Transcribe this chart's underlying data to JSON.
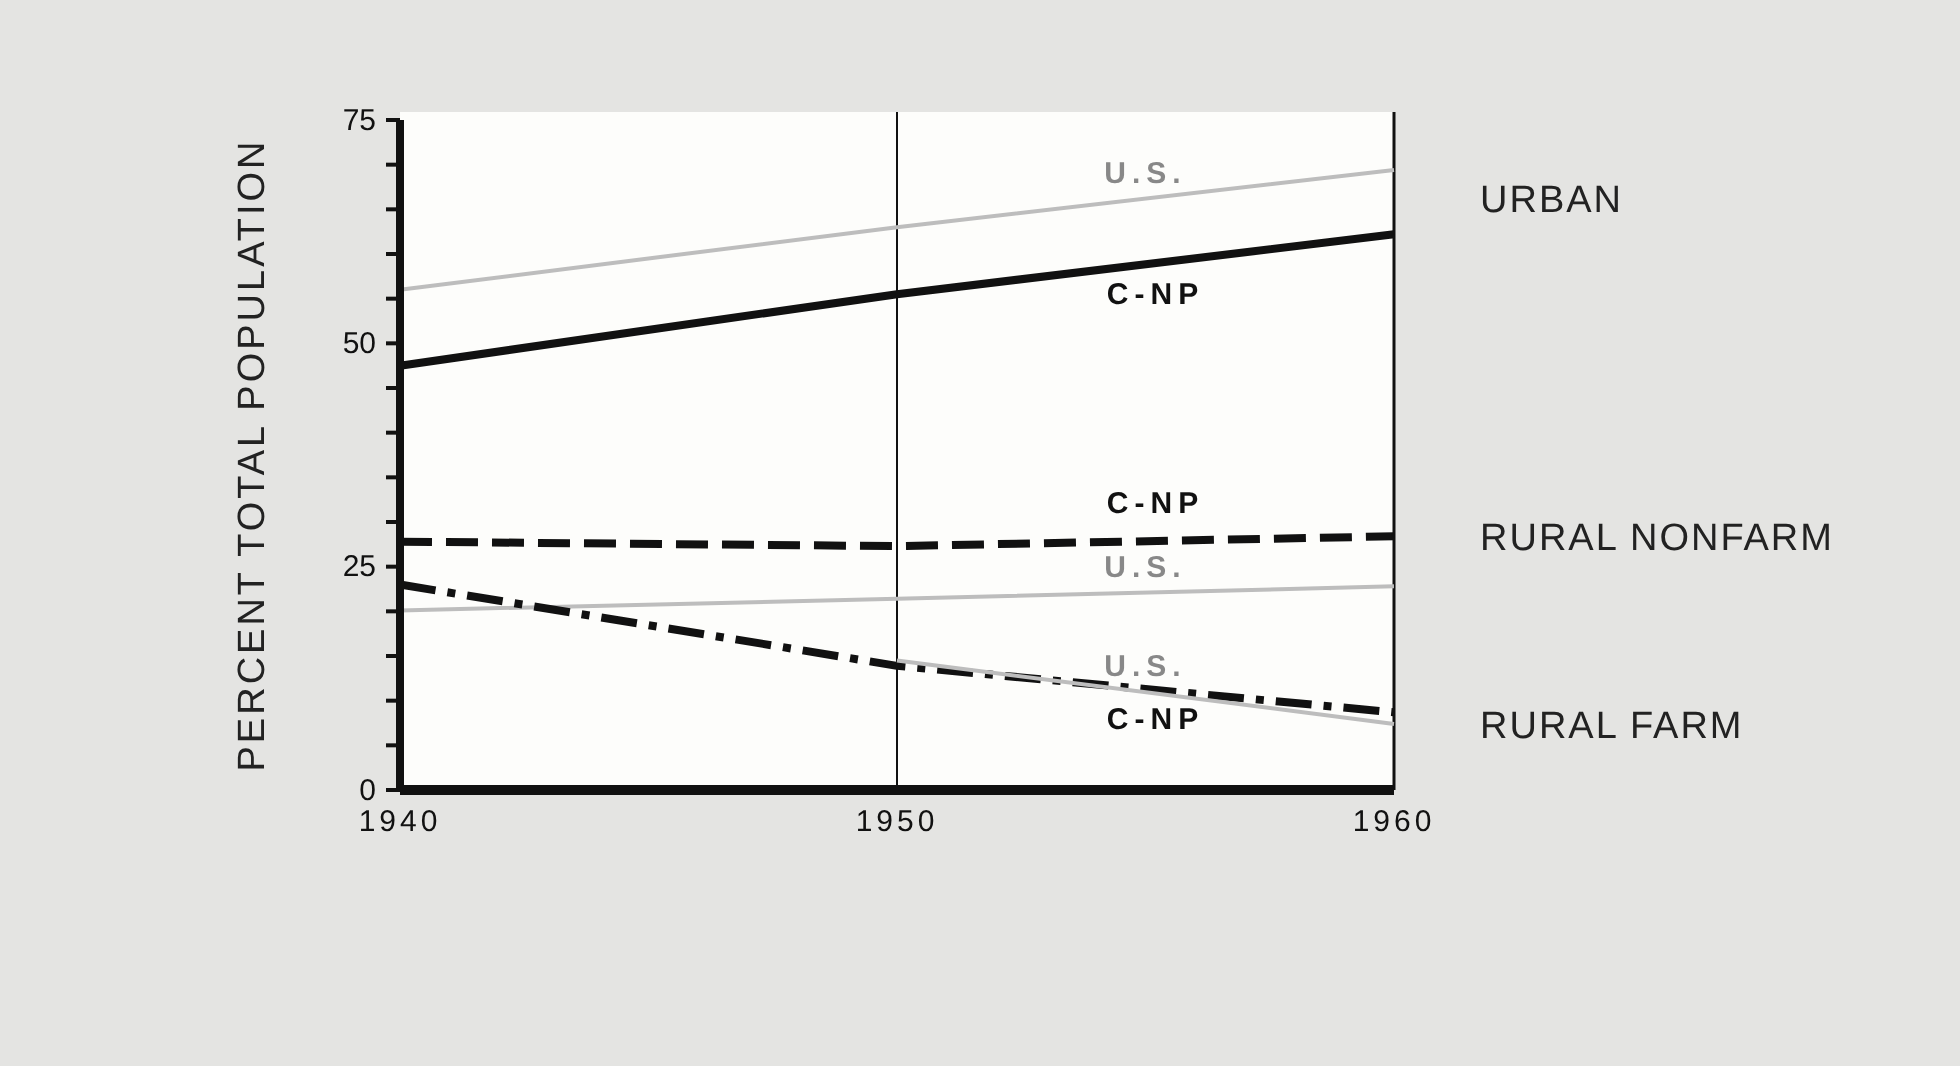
{
  "chart_data": {
    "type": "line",
    "ylabel": "PERCENT TOTAL POPULATION",
    "x": [
      1940,
      1950,
      1960
    ],
    "xlim": [
      1940,
      1960
    ],
    "xticks": [
      1940,
      1950,
      1960
    ],
    "ylim": [
      0,
      75
    ],
    "yticks": [
      0,
      {
        "value": 5,
        "label": null
      },
      {
        "value": 10,
        "label": null
      },
      {
        "value": 15,
        "label": null
      },
      {
        "value": 20,
        "label": null
      },
      25,
      {
        "value": 30,
        "label": null
      },
      {
        "value": 35,
        "label": null
      },
      {
        "value": 40,
        "label": null
      },
      {
        "value": 45,
        "label": null
      },
      50,
      {
        "value": 55,
        "label": null
      },
      {
        "value": 60,
        "label": null
      },
      {
        "value": 65,
        "label": null
      },
      {
        "value": 70,
        "label": null
      },
      75
    ],
    "grid": false,
    "legend": false,
    "marker": "none",
    "series": [
      {
        "name": "C-NP",
        "color": "#111111",
        "line_style": "solid",
        "values": [
          47.5,
          55.5,
          62.2
        ]
      },
      {
        "name": "U.S.",
        "color": "#bdbdbd",
        "line_style": "solid",
        "values": [
          56,
          63,
          69.4
        ]
      },
      {
        "name": "C-NP",
        "color": "#111111",
        "line_style": "dashed",
        "values": [
          27.8,
          27.3,
          28.4
        ]
      },
      {
        "name": "U.S.",
        "color": "#bdbdbd",
        "line_style": "solid",
        "values": [
          20.1,
          21.4,
          22.8
        ]
      },
      {
        "name": "C-NP",
        "color": "#111111",
        "line_style": "dashdot",
        "values": [
          23,
          13.9,
          8.7
        ]
      },
      {
        "name": "U.S.",
        "color": "#bdbdbd",
        "line_style": "solid",
        "values": [
          null,
          14.5,
          7.4
        ]
      }
    ],
    "ref_lines": [
      {
        "axis": "x",
        "value": 1950,
        "label": null,
        "color": "#111111"
      }
    ],
    "annotations": [
      "URBAN",
      "RURAL NONFARM",
      "RURAL FARM"
    ]
  }
}
